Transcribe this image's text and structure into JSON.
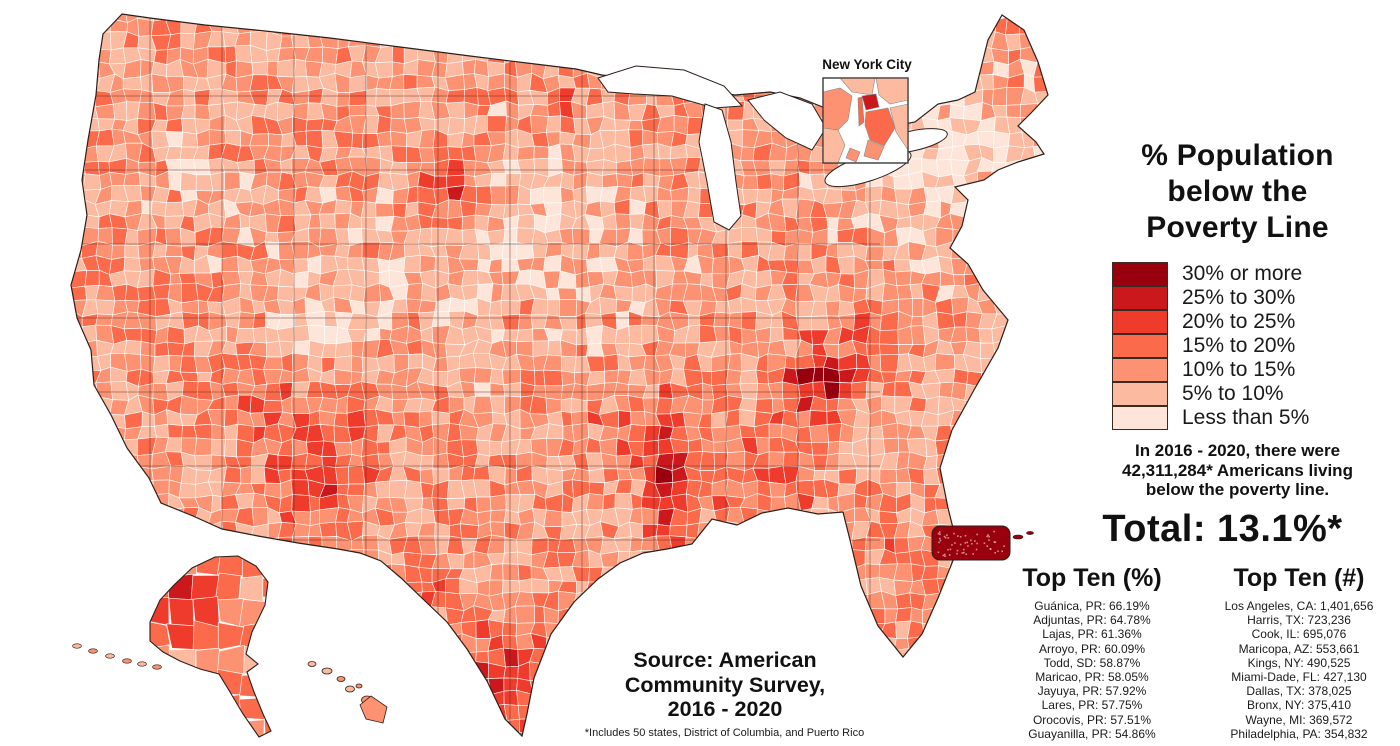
{
  "title": "% Population\nbelow the\nPoverty Line",
  "legend": {
    "items": [
      {
        "color": "#99000d",
        "label": "30% or more"
      },
      {
        "color": "#cb181d",
        "label": "25% to 30%"
      },
      {
        "color": "#ef3b2c",
        "label": "20% to 25%"
      },
      {
        "color": "#fb6a4a",
        "label": "15% to 20%"
      },
      {
        "color": "#fc9272",
        "label": "10% to 15%"
      },
      {
        "color": "#fcbba1",
        "label": "5% to 10%"
      },
      {
        "color": "#fee5d9",
        "label": "Less than 5%"
      }
    ]
  },
  "stats": {
    "summary": "In 2016 - 2020, there were\n42,311,284* Americans living\nbelow the poverty line.",
    "total": "Total: 13.1%*"
  },
  "top_ten_pct": {
    "heading": "Top Ten (%)",
    "items": [
      "Guánica, PR: 66.19%",
      "Adjuntas, PR: 64.78%",
      "Lajas, PR: 61.36%",
      "Arroyo, PR: 60.09%",
      "Todd, SD: 58.87%",
      "Maricao, PR: 58.05%",
      "Jayuya, PR: 57.92%",
      "Lares, PR: 57.75%",
      "Orocovis, PR: 57.51%",
      "Guayanilla, PR: 54.86%"
    ]
  },
  "top_ten_num": {
    "heading": "Top Ten (#)",
    "items": [
      "Los Angeles, CA: 1,401,656",
      "Harris, TX: 723,236",
      "Cook, IL: 695,076",
      "Maricopa, AZ: 553,661",
      "Kings, NY: 490,525",
      "Miami-Dade, FL: 427,130",
      "Dallas, TX: 378,025",
      "Bronx, NY: 375,410",
      "Wayne, MI: 369,572",
      "Philadelphia, PA: 354,832"
    ]
  },
  "source": "Source: American\nCommunity Survey,\n2016 - 2020",
  "footnote": "*Includes 50 states, District of Columbia, and Puerto Rico",
  "inset": {
    "label": "New York City"
  },
  "map": {
    "palette": [
      "#fee5d9",
      "#fcbba1",
      "#fc9272",
      "#fb6a4a",
      "#ef3b2c",
      "#cb181d",
      "#99000d"
    ],
    "outline_color": "#2a1f1a",
    "water_color": "#ffffff"
  }
}
